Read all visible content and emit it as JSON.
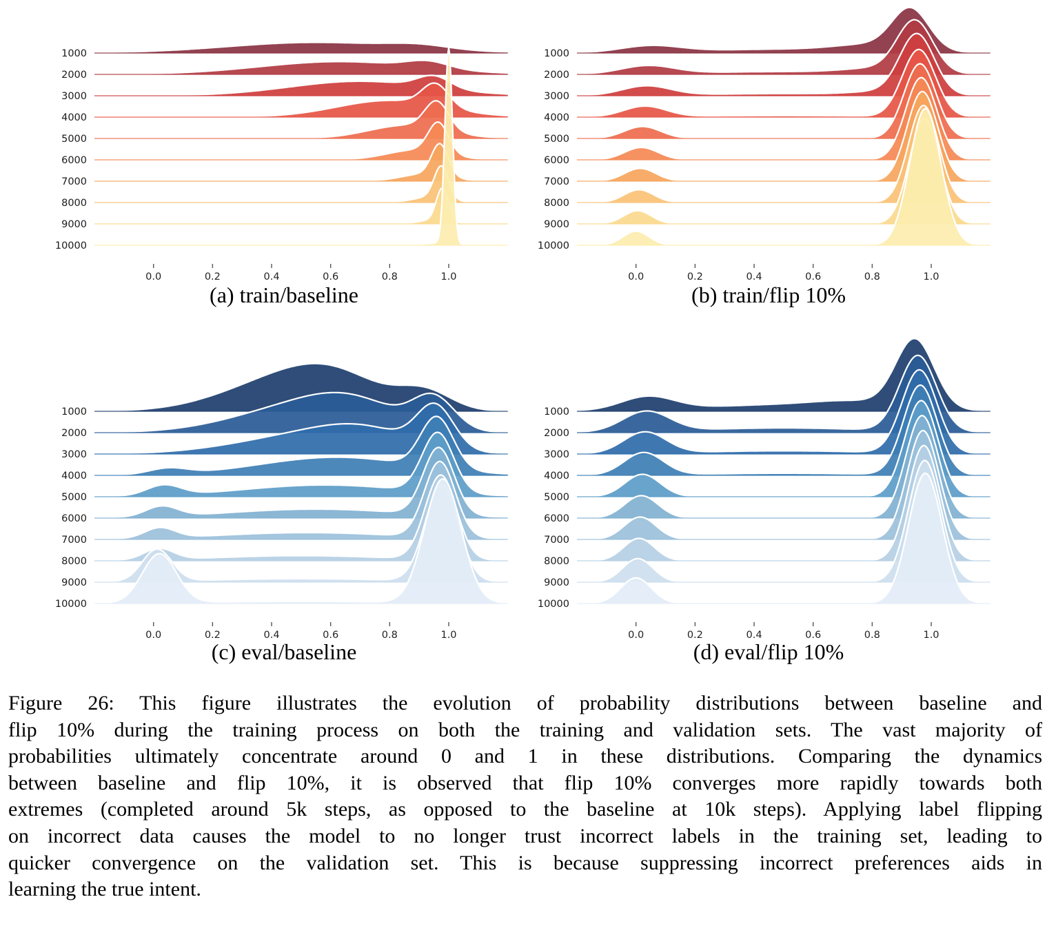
{
  "figure": {
    "name": "Figure 26",
    "captions": {
      "a": "(a) train/baseline",
      "b": "(b) train/flip 10%",
      "c": "(c) eval/baseline",
      "d": "(d) eval/flip 10%"
    },
    "figure_caption_lines": [
      "Figure 26: This figure illustrates the evolution of probability distributions between baseline and",
      "flip 10% during the training process on both the training and validation sets. The vast majority of",
      "probabilities ultimately concentrate around 0 and 1 in these distributions. Comparing the dynamics",
      "between baseline and flip 10%, it is observed that flip 10% converges more rapidly towards both",
      "extremes (completed around 5k steps, as opposed to the baseline at 10k steps). Applying label flipping",
      "on incorrect data causes the model to no longer trust incorrect labels in the training set, leading to",
      "quicker convergence on the validation set. This is because suppressing incorrect preferences aids in",
      "learning the true intent."
    ],
    "colors": {
      "background": "#ffffff",
      "ridge_outline": "#ffffff",
      "tick_mark": "#555555",
      "tick_label": "#222222",
      "row_label": "#1a1a1a"
    }
  },
  "chart_data": [
    {
      "id": "a",
      "type": "area",
      "variant": "ridgeline-kde",
      "title": "(a) train/baseline",
      "categories": [
        "1000",
        "2000",
        "3000",
        "4000",
        "5000",
        "6000",
        "7000",
        "8000",
        "9000",
        "10000"
      ],
      "x_range": [
        -0.2,
        1.2
      ],
      "x_ticks": [
        "0.0",
        "0.2",
        "0.4",
        "0.6",
        "0.8",
        "1.0"
      ],
      "x_tick_values": [
        0,
        0.2,
        0.4,
        0.6,
        0.8,
        1.0
      ],
      "gaussian_format": "[mean, sd, peak_height_in_row_units]",
      "palette": [
        "#8a3444",
        "#b13b44",
        "#cf3e3e",
        "#e65647",
        "#ee6d4f",
        "#f58a55",
        "#f6a65e",
        "#fac276",
        "#fbd98e",
        "#fcedae"
      ],
      "series": [
        {
          "name": "1000",
          "gaussians": [
            [
              0.55,
              0.3,
              0.5
            ],
            [
              0.9,
              0.1,
              0.18
            ]
          ]
        },
        {
          "name": "2000",
          "gaussians": [
            [
              0.63,
              0.27,
              0.6
            ],
            [
              0.93,
              0.07,
              0.32
            ]
          ]
        },
        {
          "name": "3000",
          "gaussians": [
            [
              0.7,
              0.24,
              0.68
            ],
            [
              0.95,
              0.055,
              0.55
            ]
          ]
        },
        {
          "name": "4000",
          "gaussians": [
            [
              0.8,
              0.18,
              0.78
            ],
            [
              0.955,
              0.045,
              1.05
            ]
          ]
        },
        {
          "name": "5000",
          "gaussians": [
            [
              0.86,
              0.13,
              0.62
            ],
            [
              0.96,
              0.04,
              1.3
            ]
          ]
        },
        {
          "name": "6000",
          "gaussians": [
            [
              0.89,
              0.1,
              0.46
            ],
            [
              0.965,
              0.034,
              1.42
            ]
          ]
        },
        {
          "name": "7000",
          "gaussians": [
            [
              0.92,
              0.08,
              0.34
            ],
            [
              0.97,
              0.028,
              1.48
            ]
          ]
        },
        {
          "name": "8000",
          "gaussians": [
            [
              0.94,
              0.06,
              0.26
            ],
            [
              0.975,
              0.024,
              1.5
            ]
          ]
        },
        {
          "name": "9000",
          "gaussians": [
            [
              0.95,
              0.05,
              0.18
            ],
            [
              0.978,
              0.02,
              1.52
            ]
          ]
        },
        {
          "name": "10000",
          "gaussians": [
            [
              0.96,
              0.04,
              0.1
            ],
            [
              1.0,
              0.013,
              9.2
            ]
          ]
        }
      ]
    },
    {
      "id": "b",
      "type": "area",
      "variant": "ridgeline-kde",
      "title": "(b) train/flip 10%",
      "categories": [
        "1000",
        "2000",
        "3000",
        "4000",
        "5000",
        "6000",
        "7000",
        "8000",
        "9000",
        "10000"
      ],
      "x_range": [
        -0.2,
        1.2
      ],
      "x_ticks": [
        "0.0",
        "0.2",
        "0.4",
        "0.6",
        "0.8",
        "1.0"
      ],
      "x_tick_values": [
        0,
        0.2,
        0.4,
        0.6,
        0.8,
        1.0
      ],
      "gaussian_format": "[mean, sd, peak_height_in_row_units]",
      "palette": [
        "#8a3444",
        "#b13b44",
        "#cf3e3e",
        "#e65647",
        "#ee6d4f",
        "#f58a55",
        "#f6a65e",
        "#fac276",
        "#fbd98e",
        "#fcedae"
      ],
      "series": [
        {
          "name": "1000",
          "gaussians": [
            [
              0.05,
              0.1,
              0.3
            ],
            [
              0.5,
              0.3,
              0.18
            ],
            [
              0.8,
              0.12,
              0.3
            ],
            [
              0.93,
              0.062,
              1.9
            ]
          ]
        },
        {
          "name": "2000",
          "gaussians": [
            [
              0.04,
              0.09,
              0.38
            ],
            [
              0.5,
              0.3,
              0.13
            ],
            [
              0.82,
              0.11,
              0.22
            ],
            [
              0.945,
              0.06,
              2.4
            ]
          ]
        },
        {
          "name": "3000",
          "gaussians": [
            [
              0.035,
              0.082,
              0.44
            ],
            [
              0.5,
              0.29,
              0.1
            ],
            [
              0.84,
              0.1,
              0.16
            ],
            [
              0.952,
              0.058,
              2.8
            ]
          ]
        },
        {
          "name": "4000",
          "gaussians": [
            [
              0.03,
              0.072,
              0.5
            ],
            [
              0.5,
              0.28,
              0.07
            ],
            [
              0.958,
              0.056,
              3.15
            ]
          ]
        },
        {
          "name": "5000",
          "gaussians": [
            [
              0.022,
              0.062,
              0.56
            ],
            [
              0.962,
              0.054,
              3.5
            ]
          ]
        },
        {
          "name": "6000",
          "gaussians": [
            [
              0.018,
              0.057,
              0.58
            ],
            [
              0.966,
              0.053,
              3.85
            ]
          ]
        },
        {
          "name": "7000",
          "gaussians": [
            [
              0.014,
              0.053,
              0.6
            ],
            [
              0.97,
              0.052,
              4.2
            ]
          ]
        },
        {
          "name": "8000",
          "gaussians": [
            [
              0.01,
              0.05,
              0.6
            ],
            [
              0.974,
              0.051,
              4.55
            ]
          ]
        },
        {
          "name": "9000",
          "gaussians": [
            [
              0.005,
              0.047,
              0.62
            ],
            [
              0.977,
              0.051,
              4.95
            ]
          ]
        },
        {
          "name": "10000",
          "gaussians": [
            [
              0.0,
              0.044,
              0.66
            ],
            [
              0.98,
              0.053,
              6.4
            ]
          ]
        }
      ]
    },
    {
      "id": "c",
      "type": "area",
      "variant": "ridgeline-kde",
      "title": "(c) eval/baseline",
      "categories": [
        "1000",
        "2000",
        "3000",
        "4000",
        "5000",
        "6000",
        "7000",
        "8000",
        "9000",
        "10000"
      ],
      "x_range": [
        -0.2,
        1.2
      ],
      "x_ticks": [
        "0.0",
        "0.2",
        "0.4",
        "0.6",
        "0.8",
        "1.0"
      ],
      "x_tick_values": [
        0,
        0.2,
        0.4,
        0.6,
        0.8,
        1.0
      ],
      "gaussian_format": "[mean, sd, peak_height_in_row_units]",
      "palette": [
        "#1f3f6e",
        "#2b5d97",
        "#306dab",
        "#3e7fb5",
        "#5e9dc8",
        "#82b1d2",
        "#9cc1dc",
        "#b6d0e4",
        "#cddfee",
        "#e3edf7"
      ],
      "series": [
        {
          "name": "1000",
          "gaussians": [
            [
              0.42,
              0.2,
              1.3
            ],
            [
              0.62,
              0.16,
              1.3
            ],
            [
              0.92,
              0.09,
              0.85
            ]
          ]
        },
        {
          "name": "2000",
          "gaussians": [
            [
              0.48,
              0.22,
              1.1
            ],
            [
              0.68,
              0.16,
              1.05
            ],
            [
              0.95,
              0.07,
              1.45
            ]
          ]
        },
        {
          "name": "3000",
          "gaussians": [
            [
              0.52,
              0.24,
              0.85
            ],
            [
              0.72,
              0.16,
              0.75
            ],
            [
              0.955,
              0.062,
              1.95
            ]
          ]
        },
        {
          "name": "4000",
          "gaussians": [
            [
              0.05,
              0.065,
              0.28
            ],
            [
              0.62,
              0.26,
              0.85
            ],
            [
              0.96,
              0.055,
              2.4
            ]
          ]
        },
        {
          "name": "5000",
          "gaussians": [
            [
              0.035,
              0.058,
              0.48
            ],
            [
              0.58,
              0.28,
              0.55
            ],
            [
              0.963,
              0.053,
              2.8
            ]
          ]
        },
        {
          "name": "6000",
          "gaussians": [
            [
              0.028,
              0.054,
              0.48
            ],
            [
              0.55,
              0.3,
              0.42
            ],
            [
              0.966,
              0.052,
              3.15
            ]
          ]
        },
        {
          "name": "7000",
          "gaussians": [
            [
              0.022,
              0.051,
              0.48
            ],
            [
              0.52,
              0.3,
              0.32
            ],
            [
              0.97,
              0.052,
              3.55
            ]
          ]
        },
        {
          "name": "8000",
          "gaussians": [
            [
              0.018,
              0.05,
              0.52
            ],
            [
              0.5,
              0.3,
              0.24
            ],
            [
              0.973,
              0.053,
              3.95
            ]
          ]
        },
        {
          "name": "9000",
          "gaussians": [
            [
              0.012,
              0.05,
              1.5
            ],
            [
              0.5,
              0.32,
              0.16
            ],
            [
              0.976,
              0.056,
              4.5
            ]
          ]
        },
        {
          "name": "10000",
          "gaussians": [
            [
              0.02,
              0.058,
              2.3
            ],
            [
              0.5,
              0.34,
              0.1
            ],
            [
              0.98,
              0.062,
              5.8
            ]
          ]
        }
      ]
    },
    {
      "id": "d",
      "type": "area",
      "variant": "ridgeline-kde",
      "title": "(d) eval/flip 10%",
      "categories": [
        "1000",
        "2000",
        "3000",
        "4000",
        "5000",
        "6000",
        "7000",
        "8000",
        "9000",
        "10000"
      ],
      "x_range": [
        -0.2,
        1.2
      ],
      "x_ticks": [
        "0.0",
        "0.2",
        "0.4",
        "0.6",
        "0.8",
        "1.0"
      ],
      "x_tick_values": [
        0,
        0.2,
        0.4,
        0.6,
        0.8,
        1.0
      ],
      "gaussian_format": "[mean, sd, peak_height_in_row_units]",
      "palette": [
        "#1f3f6e",
        "#2b5d97",
        "#306dab",
        "#3e7fb5",
        "#5e9dc8",
        "#82b1d2",
        "#9cc1dc",
        "#b6d0e4",
        "#cddfee",
        "#e3edf7"
      ],
      "series": [
        {
          "name": "1000",
          "gaussians": [
            [
              0.04,
              0.09,
              0.62
            ],
            [
              0.5,
              0.3,
              0.3
            ],
            [
              0.75,
              0.14,
              0.28
            ],
            [
              0.945,
              0.065,
              3.2
            ]
          ]
        },
        {
          "name": "2000",
          "gaussians": [
            [
              0.035,
              0.08,
              0.95
            ],
            [
              0.5,
              0.3,
              0.22
            ],
            [
              0.955,
              0.062,
              3.55
            ]
          ]
        },
        {
          "name": "3000",
          "gaussians": [
            [
              0.03,
              0.072,
              1.0
            ],
            [
              0.5,
              0.29,
              0.15
            ],
            [
              0.96,
              0.059,
              3.9
            ]
          ]
        },
        {
          "name": "4000",
          "gaussians": [
            [
              0.026,
              0.066,
              1.05
            ],
            [
              0.5,
              0.28,
              0.1
            ],
            [
              0.963,
              0.057,
              4.2
            ]
          ]
        },
        {
          "name": "5000",
          "gaussians": [
            [
              0.022,
              0.06,
              1.05
            ],
            [
              0.966,
              0.056,
              4.5
            ]
          ]
        },
        {
          "name": "6000",
          "gaussians": [
            [
              0.018,
              0.057,
              1.05
            ],
            [
              0.969,
              0.055,
              4.8
            ]
          ]
        },
        {
          "name": "7000",
          "gaussians": [
            [
              0.014,
              0.054,
              1.05
            ],
            [
              0.972,
              0.054,
              5.1
            ]
          ]
        },
        {
          "name": "8000",
          "gaussians": [
            [
              0.01,
              0.052,
              1.05
            ],
            [
              0.975,
              0.054,
              5.4
            ]
          ]
        },
        {
          "name": "9000",
          "gaussians": [
            [
              0.006,
              0.051,
              1.1
            ],
            [
              0.978,
              0.055,
              5.7
            ]
          ]
        },
        {
          "name": "10000",
          "gaussians": [
            [
              0.0,
              0.052,
              1.2
            ],
            [
              0.98,
              0.057,
              6.1
            ]
          ]
        }
      ]
    }
  ]
}
